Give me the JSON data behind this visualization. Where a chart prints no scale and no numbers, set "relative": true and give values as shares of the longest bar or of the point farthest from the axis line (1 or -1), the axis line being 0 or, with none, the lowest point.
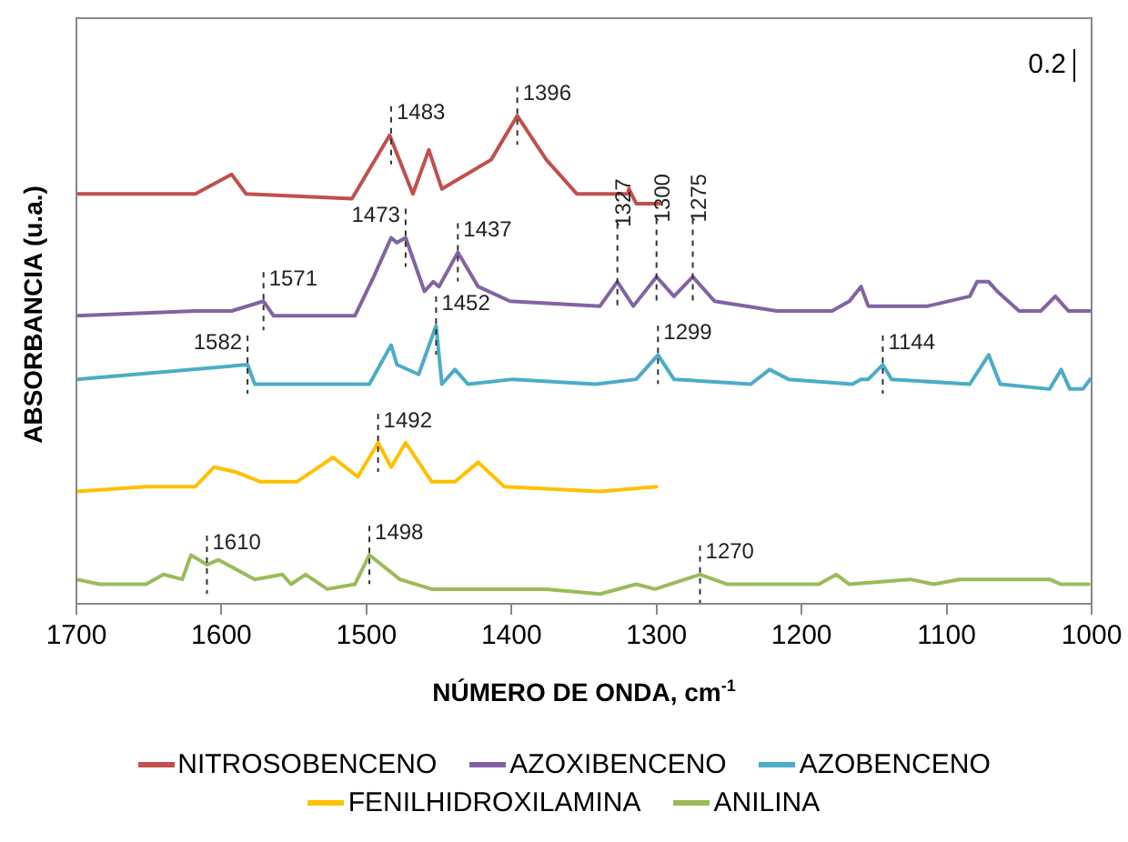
{
  "chart_data": {
    "type": "line",
    "xlabel": "NÚMERO DE ONDA, cm$^{-1}$",
    "ylabel": "ABSORBANCIA (u.a.)",
    "relative": true,
    "xlim": [
      1700,
      1000
    ],
    "xticks": [
      1700,
      1600,
      1500,
      1400,
      1300,
      1200,
      1100,
      1000
    ],
    "grid": false,
    "legend": "bottom",
    "marker": "none",
    "line_style": "solid",
    "series": [
      {
        "name": "NITROSOBENCENO",
        "color": "#c0504d",
        "x": [
          1700,
          1618,
          1593,
          1583,
          1510,
          1484,
          1468,
          1457,
          1448,
          1414,
          1396,
          1376,
          1355,
          1339,
          1320,
          1319,
          1314,
          1298
        ],
        "values": [
          0.84,
          0.84,
          0.88,
          0.84,
          0.83,
          0.96,
          0.84,
          0.93,
          0.85,
          0.91,
          1.0,
          0.91,
          0.84,
          0.84,
          0.84,
          0.85,
          0.82,
          0.82
        ]
      },
      {
        "name": "AZOXIBENCENO",
        "color": "#8064a2",
        "x": [
          1700,
          1618,
          1593,
          1571,
          1564,
          1508,
          1495,
          1483,
          1479,
          1473,
          1460,
          1454,
          1450,
          1437,
          1423,
          1401,
          1339,
          1327,
          1316,
          1300,
          1288,
          1275,
          1260,
          1217,
          1179,
          1167,
          1159,
          1154,
          1113,
          1084,
          1079,
          1071,
          1065,
          1050,
          1035,
          1025,
          1016,
          1001
        ],
        "values": [
          0.59,
          0.6,
          0.6,
          0.62,
          0.59,
          0.59,
          0.67,
          0.75,
          0.74,
          0.75,
          0.64,
          0.66,
          0.65,
          0.72,
          0.65,
          0.62,
          0.61,
          0.66,
          0.61,
          0.67,
          0.63,
          0.67,
          0.62,
          0.6,
          0.6,
          0.62,
          0.65,
          0.61,
          0.61,
          0.63,
          0.66,
          0.66,
          0.64,
          0.6,
          0.6,
          0.63,
          0.6,
          0.6
        ]
      },
      {
        "name": "AZOBENCENO",
        "color": "#4bacc6",
        "x": [
          1700,
          1582,
          1577,
          1498,
          1483,
          1479,
          1464,
          1452,
          1448,
          1439,
          1430,
          1399,
          1342,
          1314,
          1299,
          1288,
          1235,
          1222,
          1209,
          1165,
          1159,
          1154,
          1144,
          1138,
          1084,
          1071,
          1063,
          1029,
          1021,
          1015,
          1006,
          1001
        ],
        "values": [
          0.46,
          0.49,
          0.45,
          0.45,
          0.53,
          0.49,
          0.47,
          0.57,
          0.45,
          0.48,
          0.45,
          0.46,
          0.45,
          0.46,
          0.51,
          0.46,
          0.45,
          0.48,
          0.46,
          0.45,
          0.46,
          0.46,
          0.49,
          0.46,
          0.45,
          0.51,
          0.45,
          0.44,
          0.48,
          0.44,
          0.44,
          0.46
        ]
      },
      {
        "name": "FENILHIDROXILAMINA",
        "color": "#ffc000",
        "x": [
          1700,
          1652,
          1618,
          1605,
          1590,
          1573,
          1548,
          1523,
          1506,
          1492,
          1483,
          1473,
          1455,
          1439,
          1423,
          1405,
          1339,
          1300
        ],
        "values": [
          0.23,
          0.24,
          0.24,
          0.28,
          0.27,
          0.25,
          0.25,
          0.3,
          0.26,
          0.33,
          0.28,
          0.33,
          0.25,
          0.25,
          0.29,
          0.24,
          0.23,
          0.24
        ]
      },
      {
        "name": "ANILINA",
        "color": "#9bbb59",
        "x": [
          1700,
          1684,
          1652,
          1640,
          1627,
          1621,
          1610,
          1602,
          1577,
          1558,
          1552,
          1542,
          1527,
          1508,
          1498,
          1477,
          1455,
          1423,
          1376,
          1339,
          1314,
          1301,
          1270,
          1251,
          1188,
          1176,
          1167,
          1125,
          1109,
          1091,
          1041,
          1029,
          1021,
          1002
        ],
        "values": [
          0.05,
          0.04,
          0.04,
          0.06,
          0.05,
          0.1,
          0.08,
          0.09,
          0.05,
          0.06,
          0.04,
          0.06,
          0.03,
          0.04,
          0.1,
          0.05,
          0.03,
          0.03,
          0.03,
          0.02,
          0.04,
          0.03,
          0.06,
          0.04,
          0.04,
          0.06,
          0.04,
          0.05,
          0.04,
          0.05,
          0.05,
          0.05,
          0.04,
          0.04
        ]
      }
    ],
    "annotations": [
      "0.2",
      {
        "text": "1483",
        "x": 1483,
        "y": 0.96
      },
      {
        "text": "1396",
        "x": 1396,
        "y": 1.0
      },
      {
        "text": "1571",
        "x": 1571,
        "y": 0.62
      },
      {
        "text": "1473",
        "x": 1473,
        "y": 0.75
      },
      {
        "text": "1437",
        "x": 1437,
        "y": 0.72
      },
      {
        "text": "1327",
        "x": 1327,
        "y": 0.66
      },
      {
        "text": "1300",
        "x": 1300,
        "y": 0.67
      },
      {
        "text": "1275",
        "x": 1275,
        "y": 0.67
      },
      {
        "text": "1582",
        "x": 1582,
        "y": 0.49
      },
      {
        "text": "1452",
        "x": 1452,
        "y": 0.57
      },
      {
        "text": "1299",
        "x": 1299,
        "y": 0.51
      },
      {
        "text": "1144",
        "x": 1144,
        "y": 0.49
      },
      {
        "text": "1492",
        "x": 1492,
        "y": 0.33
      },
      {
        "text": "1610",
        "x": 1610,
        "y": 0.08
      },
      {
        "text": "1498",
        "x": 1498,
        "y": 0.1
      },
      {
        "text": "1270",
        "x": 1270,
        "y": 0.06
      }
    ]
  }
}
